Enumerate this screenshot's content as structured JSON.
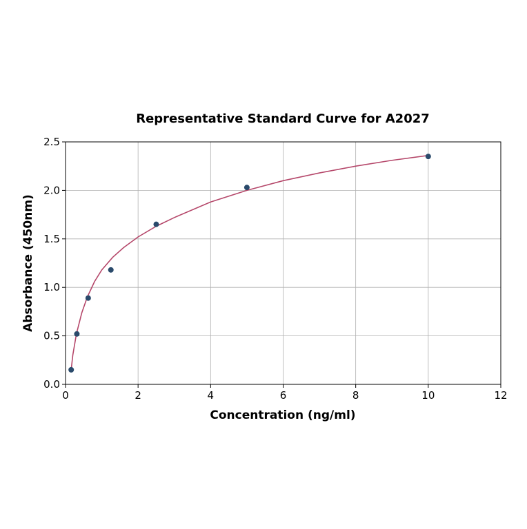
{
  "chart_data": {
    "type": "scatter",
    "title": "Representative Standard Curve for A2027",
    "xlabel": "Concentration (ng/ml)",
    "ylabel": "Absorbance (450nm)",
    "xlim": [
      0,
      12
    ],
    "ylim": [
      0,
      2.5
    ],
    "xticks": [
      0,
      2,
      4,
      6,
      8,
      10,
      12
    ],
    "yticks": [
      "0.0",
      "0.5",
      "1.0",
      "1.5",
      "2.0",
      "2.5"
    ],
    "grid": true,
    "points": {
      "x": [
        0.156,
        0.3125,
        0.625,
        1.25,
        2.5,
        5,
        10
      ],
      "y": [
        0.15,
        0.52,
        0.89,
        1.18,
        1.65,
        2.03,
        2.35
      ]
    },
    "fit_curve": {
      "x": [
        0.156,
        0.2,
        0.3,
        0.45,
        0.6,
        0.8,
        1.0,
        1.3,
        1.6,
        2.0,
        2.5,
        3,
        4,
        5,
        6,
        7,
        8,
        9,
        10
      ],
      "y": [
        0.15,
        0.3,
        0.52,
        0.74,
        0.9,
        1.06,
        1.18,
        1.31,
        1.41,
        1.52,
        1.63,
        1.72,
        1.88,
        2.0,
        2.1,
        2.18,
        2.25,
        2.31,
        2.36
      ]
    },
    "colors": {
      "points": "#2a4a6b",
      "curve": "#b5476a",
      "grid": "#b0b0b0"
    }
  }
}
